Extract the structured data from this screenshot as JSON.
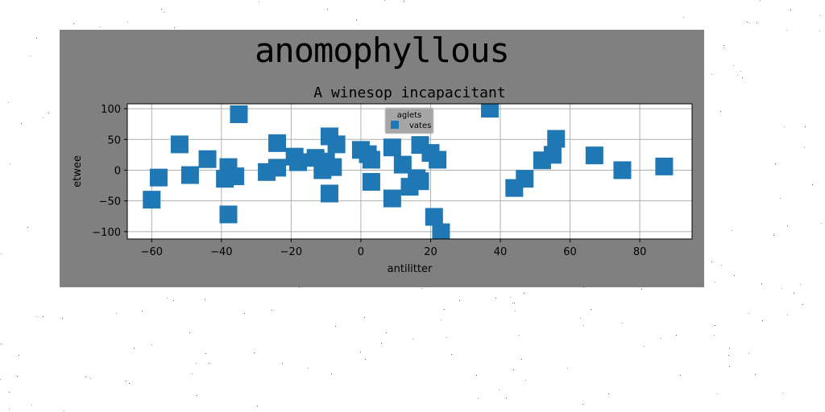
{
  "figure": {
    "suptitle": "anomophyllous",
    "background_color": "#808080",
    "page_background": "#ffffff"
  },
  "chart_data": {
    "type": "scatter",
    "title": "A winesop incapacitant",
    "xlabel": "antilitter",
    "ylabel": "etwee",
    "xlim": [
      -67,
      95
    ],
    "ylim": [
      -112,
      108
    ],
    "xticks": [
      -60,
      -40,
      -20,
      0,
      20,
      40,
      60,
      80
    ],
    "yticks": [
      -100,
      -50,
      0,
      50,
      100
    ],
    "grid": true,
    "legend": {
      "title": "aglets",
      "placement": "top-center"
    },
    "series": [
      {
        "name": "vates",
        "color": "#1f77b4",
        "marker": "square",
        "points": [
          [
            -35,
            91
          ],
          [
            -52,
            42
          ],
          [
            -44,
            18
          ],
          [
            -58,
            -12
          ],
          [
            -49,
            -8
          ],
          [
            -60,
            -48
          ],
          [
            -38,
            5
          ],
          [
            -36,
            -10
          ],
          [
            -39,
            -14
          ],
          [
            -38,
            -72
          ],
          [
            -24,
            44
          ],
          [
            -24,
            4
          ],
          [
            -27,
            -3
          ],
          [
            -19,
            22
          ],
          [
            -18,
            13
          ],
          [
            -13,
            20
          ],
          [
            -9,
            55
          ],
          [
            -7,
            42
          ],
          [
            -10,
            14
          ],
          [
            -8,
            5
          ],
          [
            -11,
            0
          ],
          [
            -9,
            -38
          ],
          [
            0,
            33
          ],
          [
            2,
            26
          ],
          [
            3,
            17
          ],
          [
            3,
            -19
          ],
          [
            9,
            37
          ],
          [
            12,
            9
          ],
          [
            9,
            -46
          ],
          [
            17,
            41
          ],
          [
            20,
            28
          ],
          [
            22,
            17
          ],
          [
            16,
            -13
          ],
          [
            17,
            -18
          ],
          [
            14,
            -27
          ],
          [
            21,
            -76
          ],
          [
            23,
            -101
          ],
          [
            37,
            100
          ],
          [
            44,
            -29
          ],
          [
            47,
            -14
          ],
          [
            52,
            16
          ],
          [
            55,
            25
          ],
          [
            56,
            51
          ],
          [
            67,
            24
          ],
          [
            75,
            0
          ],
          [
            87,
            6
          ]
        ]
      }
    ]
  }
}
